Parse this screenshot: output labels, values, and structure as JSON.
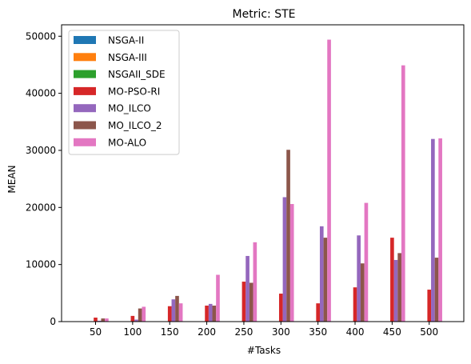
{
  "chart_data": {
    "type": "bar",
    "title": "Metric: STE",
    "xlabel": "#Tasks",
    "ylabel": "MEAN",
    "categories": [
      "50",
      "100",
      "150",
      "200",
      "250",
      "300",
      "350",
      "400",
      "450",
      "500"
    ],
    "ylim": [
      0,
      52000
    ],
    "yticks": [
      0,
      10000,
      20000,
      30000,
      40000,
      50000
    ],
    "ytick_labels": [
      "0",
      "10000",
      "20000",
      "30000",
      "40000",
      "50000"
    ],
    "legend_position": "top-left",
    "grid": false,
    "series": [
      {
        "name": "NSGA-II",
        "color": "#1f77b4",
        "values": [
          0,
          0,
          0,
          0,
          0,
          0,
          0,
          0,
          0,
          0
        ]
      },
      {
        "name": "NSGA-III",
        "color": "#ff7f0e",
        "values": [
          0,
          0,
          0,
          0,
          0,
          0,
          0,
          0,
          0,
          0
        ]
      },
      {
        "name": "NSGAII_SDE",
        "color": "#2ca02c",
        "values": [
          0,
          0,
          0,
          0,
          0,
          0,
          0,
          0,
          0,
          0
        ]
      },
      {
        "name": "MO-PSO-RI",
        "color": "#d62728",
        "values": [
          700,
          1000,
          2700,
          2800,
          7000,
          4900,
          3200,
          6000,
          14700,
          5600
        ]
      },
      {
        "name": "MO_ILCO",
        "color": "#9467bd",
        "values": [
          150,
          350,
          3900,
          3100,
          11500,
          21800,
          16700,
          15100,
          10800,
          32000
        ]
      },
      {
        "name": "MO_ILCO_2",
        "color": "#8c564b",
        "values": [
          550,
          2300,
          4500,
          2800,
          6800,
          30100,
          14700,
          10200,
          12000,
          11200
        ]
      },
      {
        "name": "MO-ALO",
        "color": "#e377c2",
        "values": [
          550,
          2600,
          3200,
          8200,
          13900,
          20600,
          49400,
          20800,
          44900,
          32100
        ]
      }
    ]
  }
}
